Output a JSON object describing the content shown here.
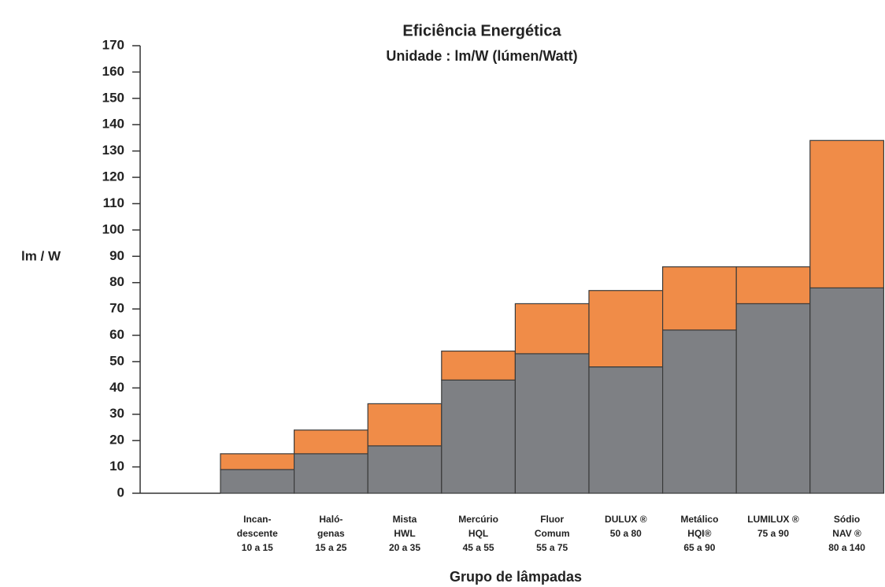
{
  "chart_data": {
    "type": "stacked-bar",
    "title": "Eficiência Energética",
    "subtitle": "Unidade : lm/W (lúmen/Watt)",
    "y_label": "lm / W",
    "x_label": "Grupo de lâmpadas",
    "categories": [
      [
        "Incan-",
        "descente",
        "10 a 15"
      ],
      [
        "Haló-",
        "genas",
        "15 a 25"
      ],
      [
        "Mista",
        "HWL",
        "20 a 35"
      ],
      [
        "Mercúrio",
        "HQL",
        "45 a 55"
      ],
      [
        "Fluor",
        "Comum",
        "55 a 75"
      ],
      [
        "DULUX ®",
        "50 a 80"
      ],
      [
        "Metálico",
        "HQI®",
        "65 a 90"
      ],
      [
        "LUMILUX ®",
        "75 a 90"
      ],
      [
        "Sódio",
        "NAV ®",
        "80 a 140"
      ]
    ],
    "series": [
      {
        "color": "#7e8084",
        "values": [
          9,
          15,
          18,
          43,
          53,
          48,
          62,
          72,
          78
        ]
      },
      {
        "color": "#f08c48",
        "values": [
          6,
          9,
          16,
          11,
          19,
          29,
          24,
          14,
          56
        ]
      }
    ],
    "ylim": [
      0,
      170
    ],
    "yticks": [
      0,
      10,
      20,
      30,
      40,
      50,
      60,
      70,
      80,
      90,
      100,
      110,
      120,
      130,
      140,
      150,
      160,
      170
    ]
  }
}
